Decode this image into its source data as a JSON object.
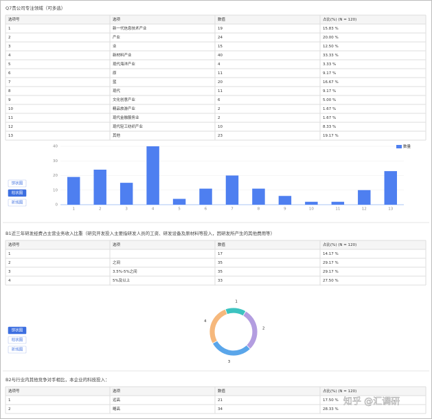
{
  "sections": [
    {
      "title": "Q7贵公司专注领域（可多选）",
      "table": {
        "header": [
          "选项号",
          "选项",
          "数值",
          "占比(%) (N = 120)"
        ],
        "rows": [
          [
            1,
            "新一代信息技术产业",
            19,
            "15.83 %"
          ],
          [
            2,
            "产业",
            24,
            "20.00 %"
          ],
          [
            3,
            "业",
            15,
            "12.50 %"
          ],
          [
            4,
            "新材料产业",
            40,
            "33.33 %"
          ],
          [
            5,
            "现代海洋产业",
            4,
            "3.33 %"
          ],
          [
            6,
            "原",
            11,
            "9.17 %"
          ],
          [
            7,
            "蓝",
            20,
            "16.67 %"
          ],
          [
            8,
            "现代",
            11,
            "9.17 %"
          ],
          [
            9,
            "文化创意产业",
            6,
            "5.00 %"
          ],
          [
            10,
            "精品旅游产业",
            2,
            "1.67 %"
          ],
          [
            11,
            "现代金融服务业",
            2,
            "1.67 %"
          ],
          [
            12,
            "现代轻工纺织产业",
            10,
            "8.33 %"
          ],
          [
            13,
            "其他",
            23,
            "19.17 %"
          ]
        ]
      },
      "chart": {
        "type": "bar",
        "legend": "数量",
        "color": "#4e7ff0",
        "ylim": [
          0,
          40
        ],
        "yticks": [
          0,
          10,
          20,
          30,
          40
        ]
      },
      "buttons": [
        "饼状图",
        "柱状图",
        "折线图"
      ],
      "active_button": 1
    },
    {
      "title": "B1近三年研发经费占主营业务收入比重（研究开发投入主要指研发人员的工资、研发设备及原材料等投入，因研发所产生的其他费用等）",
      "table": {
        "header": [
          "选项号",
          "选项",
          "数值",
          "占比(%) (N = 120)"
        ],
        "rows": [
          [
            1,
            null,
            17,
            "14.17 %"
          ],
          [
            2,
            "之间",
            35,
            "29.17 %"
          ],
          [
            3,
            "3.5%-5%之间",
            35,
            "29.17 %"
          ],
          [
            4,
            "5%及以上",
            33,
            "27.50 %"
          ]
        ]
      },
      "chart": {
        "type": "donut",
        "colors": [
          "#3cc3c0",
          "#b39de0",
          "#5aa6ea",
          "#f6b87c"
        ]
      },
      "buttons": [
        "饼状图",
        "柱状图",
        "折线图"
      ],
      "active_button": 0
    },
    {
      "title": "B2与行业内其他竞争对手相比，本企业的科技投入：",
      "table": {
        "header": [
          "选项号",
          "选项",
          "数值",
          "占比(%) (N = 120)"
        ],
        "rows": [
          [
            1,
            "远高",
            21,
            "17.50 %"
          ],
          [
            2,
            "略高",
            34,
            "28.33 %"
          ]
        ]
      }
    }
  ],
  "watermark": "知乎 @汇调研"
}
